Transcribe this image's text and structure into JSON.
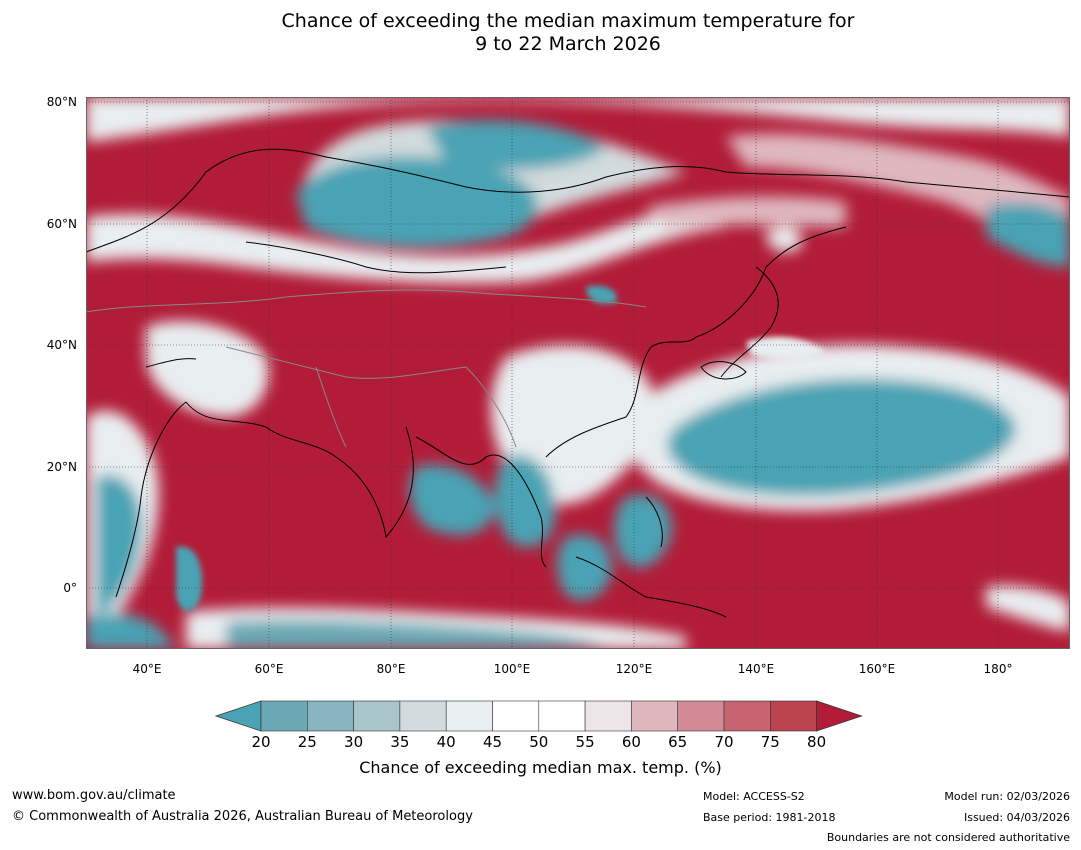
{
  "title": {
    "line1": "Chance of exceeding the median maximum temperature for",
    "line2": "9 to 22 March 2026"
  },
  "axes": {
    "lat_labels": [
      "80°N",
      "60°N",
      "40°N",
      "20°N",
      "0°"
    ],
    "lon_labels": [
      "40°E",
      "60°E",
      "80°E",
      "100°E",
      "120°E",
      "140°E",
      "160°E",
      "180°"
    ]
  },
  "colorbar": {
    "ticks": [
      "20",
      "25",
      "30",
      "35",
      "40",
      "45",
      "50",
      "55",
      "60",
      "65",
      "70",
      "75",
      "80"
    ],
    "label": "Chance of exceeding median max. temp. (%)",
    "colors": [
      "#4aa3b4",
      "#6ba9b5",
      "#88b5c0",
      "#a9c5ca",
      "#d2dbdd",
      "#e9eef0",
      "#ffffff",
      "#ffffff",
      "#ece6e8",
      "#dfb7bf",
      "#d28b96",
      "#c7646f",
      "#bb4350",
      "#b21c38"
    ]
  },
  "footer": {
    "website": "www.bom.gov.au/climate",
    "copyright": "© Commonwealth of Australia 2026, Australian Bureau of Meteorology",
    "model": "Model: ACCESS-S2",
    "base_period": "Base period: 1981-2018",
    "model_run": "Model run: 02/03/2026",
    "issued": "Issued: 04/03/2026",
    "disclaimer": "Boundaries are not considered authoritative"
  }
}
